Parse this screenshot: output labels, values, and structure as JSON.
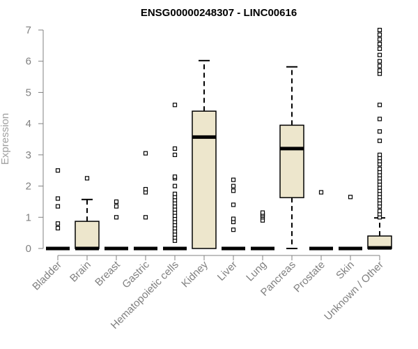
{
  "chart_data": {
    "type": "boxplot",
    "title": "ENSG00000248307 - LINC00616",
    "xlabel": "",
    "ylabel": "Expression",
    "ylim": [
      0,
      7
    ],
    "yticks": [
      0,
      1,
      2,
      3,
      4,
      5,
      6,
      7
    ],
    "grid": false,
    "legend": "none",
    "colors": {
      "box_fill": "#ede6cc",
      "axis": "#808080",
      "ink": "#000000"
    },
    "categories": [
      "Bladder",
      "Brain",
      "Breast",
      "Gastric",
      "Hematopoietic cells",
      "Kidney",
      "Liver",
      "Lung",
      "Pancreas",
      "Prostate",
      "Skin",
      "Unknown / Other"
    ],
    "boxes": [
      {
        "category": "Bladder",
        "q1": 0,
        "median": 0,
        "q3": 0,
        "whisker_low": 0,
        "whisker_high": 0,
        "outliers": [
          0.65,
          0.8,
          1.35,
          1.6,
          2.5
        ]
      },
      {
        "category": "Brain",
        "q1": 0,
        "median": 0,
        "q3": 0.87,
        "whisker_low": 0,
        "whisker_high": 1.57,
        "outliers": [
          2.25
        ]
      },
      {
        "category": "Breast",
        "q1": 0,
        "median": 0,
        "q3": 0,
        "whisker_low": 0,
        "whisker_high": 0,
        "outliers": [
          1.0,
          1.35,
          1.5
        ]
      },
      {
        "category": "Gastric",
        "q1": 0,
        "median": 0,
        "q3": 0,
        "whisker_low": 0,
        "whisker_high": 0,
        "outliers": [
          1.0,
          1.8,
          1.9,
          3.05
        ]
      },
      {
        "category": "Hematopoietic cells",
        "q1": 0,
        "median": 0,
        "q3": 0,
        "whisker_low": 0,
        "whisker_high": 0,
        "outliers": [
          0.25,
          0.35,
          0.45,
          0.55,
          0.65,
          0.75,
          0.85,
          0.95,
          1.05,
          1.15,
          1.25,
          1.35,
          1.45,
          1.55,
          1.65,
          1.75,
          2.0,
          2.25,
          2.3,
          3.0,
          3.2,
          4.6
        ]
      },
      {
        "category": "Kidney",
        "q1": 0,
        "median": 3.57,
        "q3": 4.4,
        "whisker_low": 0,
        "whisker_high": 6.02,
        "outliers": []
      },
      {
        "category": "Liver",
        "q1": 0,
        "median": 0,
        "q3": 0,
        "whisker_low": 0,
        "whisker_high": 0,
        "outliers": [
          0.6,
          0.85,
          0.95,
          1.4,
          1.85,
          2.0,
          2.2
        ]
      },
      {
        "category": "Lung",
        "q1": 0,
        "median": 0,
        "q3": 0,
        "whisker_low": 0,
        "whisker_high": 0,
        "outliers": [
          0.9,
          1.0,
          1.05,
          1.1,
          1.15
        ]
      },
      {
        "category": "Pancreas",
        "q1": 1.63,
        "median": 3.2,
        "q3": 3.95,
        "whisker_low": 0,
        "whisker_high": 5.82,
        "outliers": []
      },
      {
        "category": "Prostate",
        "q1": 0,
        "median": 0,
        "q3": 0,
        "whisker_low": 0,
        "whisker_high": 0,
        "outliers": [
          1.8
        ]
      },
      {
        "category": "Skin",
        "q1": 0,
        "median": 0,
        "q3": 0,
        "whisker_low": 0,
        "whisker_high": 0,
        "outliers": [
          1.65
        ]
      },
      {
        "category": "Unknown / Other",
        "q1": 0,
        "median": 0.02,
        "q3": 0.4,
        "whisker_low": 0,
        "whisker_high": 0.98,
        "outliers": [
          1.0,
          1.1,
          1.2,
          1.35,
          1.45,
          1.55,
          1.65,
          1.75,
          1.85,
          1.95,
          2.05,
          2.15,
          2.25,
          2.35,
          2.45,
          2.55,
          2.7,
          2.8,
          2.9,
          3.0,
          3.45,
          3.75,
          4.15,
          4.6,
          5.6,
          5.7,
          5.85,
          6.0,
          6.2,
          6.4,
          6.55,
          6.7,
          6.85,
          7.0
        ]
      }
    ]
  }
}
